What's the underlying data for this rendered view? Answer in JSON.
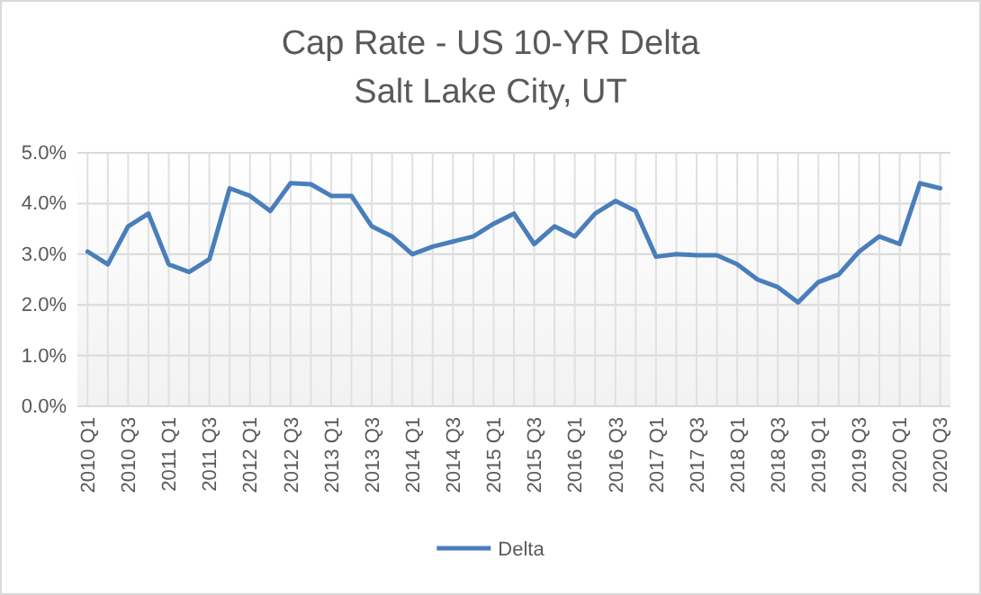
{
  "chart_data": {
    "type": "line",
    "title": "Cap Rate - US 10-YR Delta",
    "subtitle": "Salt Lake City, UT",
    "categories": [
      "2010 Q1",
      null,
      "2010 Q3",
      null,
      "2011 Q1",
      null,
      "2011 Q3",
      null,
      "2012 Q1",
      null,
      "2012 Q3",
      null,
      "2013 Q1",
      null,
      "2013 Q3",
      null,
      "2014 Q1",
      null,
      "2014 Q3",
      null,
      "2015 Q1",
      null,
      "2015 Q3",
      null,
      "2016 Q1",
      null,
      "2016 Q3",
      null,
      "2017 Q1",
      null,
      "2017 Q3",
      null,
      "2018 Q1",
      null,
      "2018 Q3",
      null,
      "2019 Q1",
      null,
      "2019 Q3",
      null,
      "2020 Q1",
      null,
      "2020 Q3"
    ],
    "series": [
      {
        "name": "Delta",
        "color": "#4a7ebb",
        "values": [
          3.05,
          2.8,
          3.55,
          3.8,
          2.8,
          2.65,
          2.9,
          4.3,
          4.15,
          3.85,
          4.4,
          4.38,
          4.15,
          4.15,
          3.55,
          3.35,
          3.0,
          3.15,
          3.25,
          3.35,
          3.6,
          3.8,
          3.2,
          3.55,
          3.35,
          3.8,
          4.05,
          3.85,
          2.95,
          3.0,
          2.98,
          2.98,
          2.8,
          2.5,
          2.35,
          2.05,
          2.45,
          2.6,
          3.05,
          3.35,
          3.2,
          4.4,
          4.3
        ]
      }
    ],
    "ylim": [
      0,
      5
    ],
    "yticks": [
      {
        "value": 0,
        "label": "0.0%"
      },
      {
        "value": 1,
        "label": "1.0%"
      },
      {
        "value": 2,
        "label": "2.0%"
      },
      {
        "value": 3,
        "label": "3.0%"
      },
      {
        "value": 4,
        "label": "4.0%"
      },
      {
        "value": 5,
        "label": "5.0%"
      }
    ],
    "grid": true,
    "legend": "bottom",
    "marker": "none",
    "line_style": "solid"
  }
}
